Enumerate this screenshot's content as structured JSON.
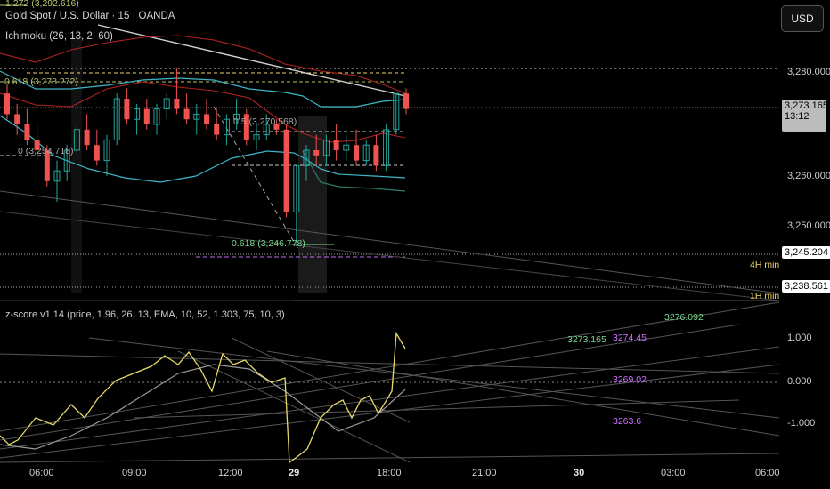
{
  "header": {
    "fib_top": "1.272 (3,292.616)",
    "title": "Gold Spot / U.S. Dollar · 15 · OANDA",
    "indicator": "Ichimoku (26, 13, 2, 60)"
  },
  "currency_button": "USD",
  "price_axis": [
    "3,280.000",
    "3,260.000",
    "3,250.000"
  ],
  "price_tags": {
    "current": "3,273.165",
    "countdown": "13:12",
    "min4h_price": "3,245.204",
    "min4h_label": "4H min",
    "min1h_price": "3,238.561",
    "min1h_label": "1H min"
  },
  "fib_labels": {
    "f0618": "0.618 (3,278.272)",
    "f_mid": "0.5 (3,270.568)",
    "f0": "0 (3,254.718)",
    "f0618_low": "0.618 (3,246.778)"
  },
  "zscore": {
    "title": "z-score v1.14 (price, 1.96, 26, 13, EMA, 10, 52, 1.303, 75, 10, 3)",
    "axis": [
      "1.000",
      "0.000",
      "-1.000"
    ],
    "levels": {
      "a": "3273.165",
      "b": "3274.45",
      "c": "3276.092",
      "d": "3269.02",
      "e": "3263.6"
    }
  },
  "time_axis": [
    "06:00",
    "09:00",
    "12:00",
    "29",
    "18:00",
    "21:00",
    "30",
    "03:00",
    "06:00"
  ],
  "colors": {
    "bull": "#26a69a",
    "bear": "#ef5350",
    "green_text": "#7bd88f",
    "magenta": "#d070ff",
    "yellow": "#f1d36a"
  },
  "chart_data": {
    "type": "candlestick",
    "title": "Gold Spot / U.S. Dollar · 15 · OANDA",
    "y_axis_ticks": [
      3280,
      3260,
      3250
    ],
    "last_price": 3273.165,
    "candles": [
      [
        3276,
        3278,
        3271,
        3272
      ],
      [
        3272,
        3274,
        3268,
        3270
      ],
      [
        3270,
        3273,
        3266,
        3267
      ],
      [
        3267,
        3270,
        3263,
        3265
      ],
      [
        3265,
        3266,
        3258,
        3259
      ],
      [
        3259,
        3263,
        3255,
        3261
      ],
      [
        3261,
        3266,
        3259,
        3265
      ],
      [
        3265,
        3270,
        3264,
        3269
      ],
      [
        3269,
        3272,
        3265,
        3266
      ],
      [
        3266,
        3269,
        3262,
        3263
      ],
      [
        3263,
        3268,
        3260,
        3267
      ],
      [
        3267,
        3276,
        3266,
        3275
      ],
      [
        3275,
        3277,
        3270,
        3271
      ],
      [
        3271,
        3274,
        3268,
        3273
      ],
      [
        3273,
        3275,
        3269,
        3270
      ],
      [
        3270,
        3274,
        3268,
        3273
      ],
      [
        3273,
        3276,
        3271,
        3275
      ],
      [
        3275,
        3281,
        3272,
        3273
      ],
      [
        3273,
        3276,
        3270,
        3271
      ],
      [
        3271,
        3274,
        3268,
        3272
      ],
      [
        3272,
        3275,
        3269,
        3270
      ],
      [
        3270,
        3273,
        3267,
        3268
      ],
      [
        3268,
        3272,
        3266,
        3271
      ],
      [
        3271,
        3275,
        3269,
        3272
      ],
      [
        3272,
        3273,
        3266,
        3267
      ],
      [
        3267,
        3270,
        3265,
        3268
      ],
      [
        3268,
        3272,
        3267,
        3270
      ],
      [
        3270,
        3271,
        3268,
        3269
      ],
      [
        3269,
        3270,
        3252,
        3253
      ],
      [
        3253,
        3262,
        3247,
        3262
      ],
      [
        3262,
        3266,
        3259,
        3265
      ],
      [
        3265,
        3268,
        3262,
        3264
      ],
      [
        3264,
        3268,
        3262,
        3267
      ],
      [
        3267,
        3270,
        3263,
        3265
      ],
      [
        3265,
        3268,
        3263,
        3266
      ],
      [
        3266,
        3269,
        3262,
        3263
      ],
      [
        3263,
        3267,
        3262,
        3266
      ],
      [
        3266,
        3268,
        3261,
        3262
      ],
      [
        3262,
        3270,
        3261,
        3269
      ],
      [
        3269,
        3276,
        3268,
        3276
      ],
      [
        3276,
        3277,
        3272,
        3273
      ]
    ]
  }
}
